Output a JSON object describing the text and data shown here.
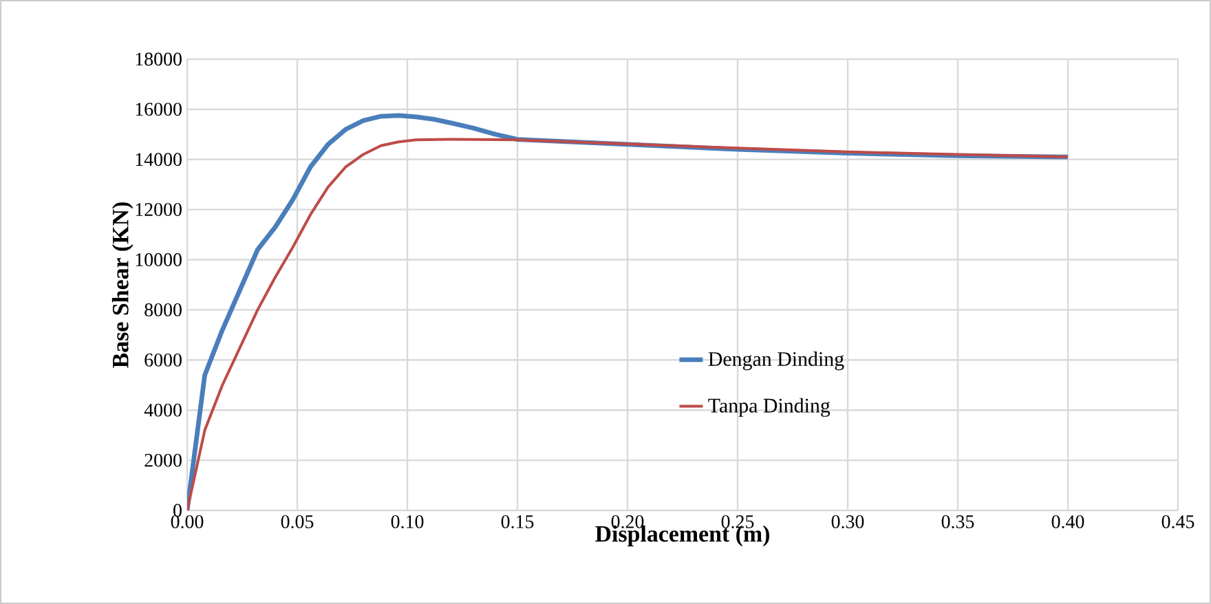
{
  "chart_data": {
    "type": "line",
    "xlabel": "Displacement (m)",
    "ylabel": "Base Shear (KN)",
    "xlim": [
      0,
      0.45
    ],
    "xticks": [
      {
        "value": 0,
        "label": "0.00"
      },
      {
        "value": 0.05,
        "label": "0.05"
      },
      {
        "value": 0.1,
        "label": "0.10"
      },
      {
        "value": 0.15,
        "label": "0.15"
      },
      {
        "value": 0.2,
        "label": "0.20"
      },
      {
        "value": 0.25,
        "label": "0.25"
      },
      {
        "value": 0.3,
        "label": "0.30"
      },
      {
        "value": 0.35,
        "label": "0.35"
      },
      {
        "value": 0.4,
        "label": "0.40"
      },
      {
        "value": 0.45,
        "label": "0.45"
      }
    ],
    "ylim": [
      0,
      18000
    ],
    "yticks": [
      0,
      2000,
      4000,
      6000,
      8000,
      10000,
      12000,
      14000,
      16000,
      18000
    ],
    "grid": true,
    "legend": "center",
    "marker": "none",
    "line_style": "solid",
    "series": [
      {
        "name": "Dengan Dinding",
        "color": "#4a7ebb",
        "x": [
          0,
          0.008,
          0.016,
          0.024,
          0.032,
          0.04,
          0.048,
          0.056,
          0.064,
          0.072,
          0.08,
          0.088,
          0.096,
          0.104,
          0.112,
          0.12,
          0.13,
          0.14,
          0.15,
          0.2,
          0.25,
          0.3,
          0.35,
          0.4
        ],
        "values": [
          0,
          5400,
          7200,
          8800,
          10400,
          11300,
          12400,
          13700,
          14600,
          15200,
          15550,
          15720,
          15750,
          15700,
          15600,
          15450,
          15250,
          15000,
          14800,
          14600,
          14400,
          14250,
          14150,
          14100
        ]
      },
      {
        "name": "Tanpa Dinding",
        "color": "#be4b48",
        "x": [
          0,
          0.008,
          0.016,
          0.024,
          0.032,
          0.04,
          0.048,
          0.056,
          0.064,
          0.072,
          0.08,
          0.088,
          0.096,
          0.104,
          0.12,
          0.15,
          0.2,
          0.25,
          0.3,
          0.35,
          0.4
        ],
        "values": [
          0,
          3200,
          5000,
          6500,
          8000,
          9300,
          10500,
          11800,
          12900,
          13700,
          14200,
          14550,
          14700,
          14780,
          14800,
          14780,
          14620,
          14450,
          14300,
          14200,
          14100
        ]
      }
    ]
  }
}
